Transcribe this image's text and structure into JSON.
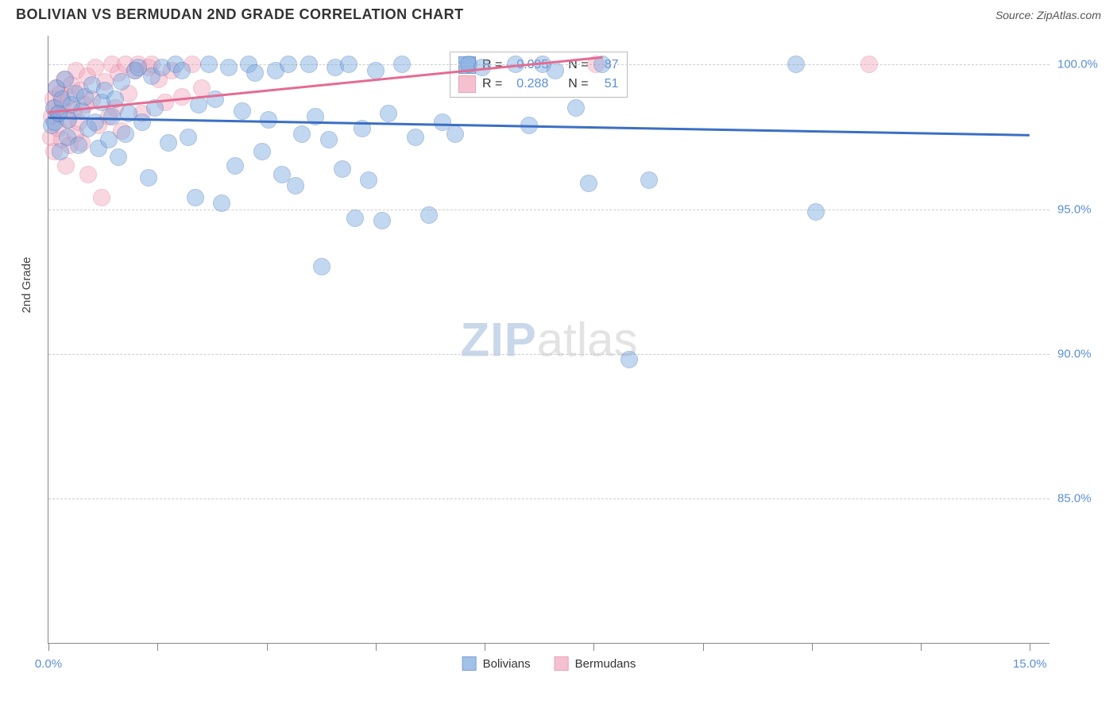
{
  "header": {
    "title": "BOLIVIAN VS BERMUDAN 2ND GRADE CORRELATION CHART",
    "source_prefix": "Source: ",
    "source_name": "ZipAtlas.com"
  },
  "chart": {
    "type": "scatter",
    "y_axis_title": "2nd Grade",
    "x_min": 0.0,
    "x_max": 15.0,
    "y_min": 80.0,
    "y_max": 101.0,
    "x_ticks": [
      0.0,
      1.634,
      3.268,
      4.902,
      6.536,
      8.17,
      9.804,
      11.438,
      13.072,
      14.706
    ],
    "x_tick_labels": {
      "0": "0.0%",
      "14.706": "15.0%"
    },
    "y_ticks": [
      85.0,
      90.0,
      95.0,
      100.0
    ],
    "y_tick_labels": [
      "85.0%",
      "90.0%",
      "95.0%",
      "100.0%"
    ],
    "grid_color": "#cccccc",
    "axis_color": "#888888",
    "background_color": "#ffffff",
    "point_radius": 10,
    "point_opacity": 0.45,
    "series": {
      "bolivians": {
        "label": "Bolivians",
        "fill_color": "#7aa8e0",
        "stroke_color": "#4a78b8",
        "trend_color": "#3b6fc4",
        "R": "-0.095",
        "N": "87",
        "trend": {
          "x1": 0.0,
          "y1": 98.2,
          "x2": 14.7,
          "y2": 97.6
        },
        "points": [
          [
            0.05,
            97.9
          ],
          [
            0.08,
            98.5
          ],
          [
            0.1,
            98.0
          ],
          [
            0.12,
            99.2
          ],
          [
            0.15,
            98.3
          ],
          [
            0.18,
            97.0
          ],
          [
            0.2,
            98.8
          ],
          [
            0.25,
            99.5
          ],
          [
            0.28,
            97.5
          ],
          [
            0.3,
            98.1
          ],
          [
            0.35,
            98.6
          ],
          [
            0.4,
            99.0
          ],
          [
            0.45,
            97.2
          ],
          [
            0.5,
            98.4
          ],
          [
            0.55,
            98.9
          ],
          [
            0.6,
            97.8
          ],
          [
            0.65,
            99.3
          ],
          [
            0.7,
            98.0
          ],
          [
            0.75,
            97.1
          ],
          [
            0.8,
            98.7
          ],
          [
            0.85,
            99.1
          ],
          [
            0.9,
            97.4
          ],
          [
            0.95,
            98.2
          ],
          [
            1.0,
            98.8
          ],
          [
            1.05,
            96.8
          ],
          [
            1.1,
            99.4
          ],
          [
            1.15,
            97.6
          ],
          [
            1.2,
            98.3
          ],
          [
            1.3,
            99.8
          ],
          [
            1.35,
            99.9
          ],
          [
            1.4,
            98.0
          ],
          [
            1.5,
            96.1
          ],
          [
            1.55,
            99.6
          ],
          [
            1.6,
            98.5
          ],
          [
            1.7,
            99.9
          ],
          [
            1.8,
            97.3
          ],
          [
            1.9,
            100.0
          ],
          [
            2.0,
            99.8
          ],
          [
            2.1,
            97.5
          ],
          [
            2.2,
            95.4
          ],
          [
            2.25,
            98.6
          ],
          [
            2.4,
            100.0
          ],
          [
            2.5,
            98.8
          ],
          [
            2.6,
            95.2
          ],
          [
            2.7,
            99.9
          ],
          [
            2.8,
            96.5
          ],
          [
            2.9,
            98.4
          ],
          [
            3.0,
            100.0
          ],
          [
            3.1,
            99.7
          ],
          [
            3.2,
            97.0
          ],
          [
            3.3,
            98.1
          ],
          [
            3.4,
            99.8
          ],
          [
            3.5,
            96.2
          ],
          [
            3.6,
            100.0
          ],
          [
            3.7,
            95.8
          ],
          [
            3.8,
            97.6
          ],
          [
            3.9,
            100.0
          ],
          [
            4.0,
            98.2
          ],
          [
            4.1,
            93.0
          ],
          [
            4.2,
            97.4
          ],
          [
            4.3,
            99.9
          ],
          [
            4.4,
            96.4
          ],
          [
            4.5,
            100.0
          ],
          [
            4.6,
            94.7
          ],
          [
            4.7,
            97.8
          ],
          [
            4.8,
            96.0
          ],
          [
            4.9,
            99.8
          ],
          [
            5.0,
            94.6
          ],
          [
            5.1,
            98.3
          ],
          [
            5.3,
            100.0
          ],
          [
            5.5,
            97.5
          ],
          [
            5.7,
            94.8
          ],
          [
            5.9,
            98.0
          ],
          [
            6.1,
            97.6
          ],
          [
            6.3,
            100.0
          ],
          [
            6.5,
            99.9
          ],
          [
            7.0,
            100.0
          ],
          [
            7.2,
            97.9
          ],
          [
            7.4,
            100.0
          ],
          [
            7.6,
            99.8
          ],
          [
            7.9,
            98.5
          ],
          [
            8.1,
            95.9
          ],
          [
            8.3,
            100.0
          ],
          [
            8.7,
            89.8
          ],
          [
            9.0,
            96.0
          ],
          [
            11.2,
            100.0
          ],
          [
            11.5,
            94.9
          ]
        ]
      },
      "bermudans": {
        "label": "Bermudans",
        "fill_color": "#f2a8bd",
        "stroke_color": "#e07a9a",
        "trend_color": "#e56b92",
        "R": "0.288",
        "N": "51",
        "trend": {
          "x1": 0.0,
          "y1": 98.4,
          "x2": 8.3,
          "y2": 100.3
        },
        "points": [
          [
            0.03,
            97.5
          ],
          [
            0.05,
            98.2
          ],
          [
            0.07,
            98.8
          ],
          [
            0.08,
            97.0
          ],
          [
            0.1,
            98.5
          ],
          [
            0.12,
            99.2
          ],
          [
            0.14,
            97.8
          ],
          [
            0.16,
            98.3
          ],
          [
            0.18,
            99.0
          ],
          [
            0.2,
            97.4
          ],
          [
            0.22,
            98.7
          ],
          [
            0.24,
            99.5
          ],
          [
            0.26,
            96.5
          ],
          [
            0.28,
            98.1
          ],
          [
            0.3,
            98.9
          ],
          [
            0.32,
            97.2
          ],
          [
            0.35,
            99.3
          ],
          [
            0.38,
            98.4
          ],
          [
            0.4,
            97.6
          ],
          [
            0.42,
            99.8
          ],
          [
            0.45,
            98.0
          ],
          [
            0.48,
            99.1
          ],
          [
            0.5,
            97.3
          ],
          [
            0.55,
            98.6
          ],
          [
            0.58,
            99.6
          ],
          [
            0.6,
            96.2
          ],
          [
            0.65,
            98.8
          ],
          [
            0.7,
            99.9
          ],
          [
            0.75,
            97.9
          ],
          [
            0.8,
            95.4
          ],
          [
            0.85,
            99.4
          ],
          [
            0.9,
            98.2
          ],
          [
            0.95,
            100.0
          ],
          [
            1.0,
            98.5
          ],
          [
            1.05,
            99.7
          ],
          [
            1.1,
            97.7
          ],
          [
            1.15,
            100.0
          ],
          [
            1.2,
            99.0
          ],
          [
            1.3,
            99.8
          ],
          [
            1.35,
            100.0
          ],
          [
            1.4,
            98.3
          ],
          [
            1.5,
            99.9
          ],
          [
            1.55,
            100.0
          ],
          [
            1.65,
            99.5
          ],
          [
            1.75,
            98.7
          ],
          [
            1.85,
            99.8
          ],
          [
            2.0,
            98.9
          ],
          [
            2.15,
            100.0
          ],
          [
            2.3,
            99.2
          ],
          [
            8.2,
            100.0
          ],
          [
            12.3,
            100.0
          ]
        ]
      }
    }
  },
  "stats_legend": {
    "rows": [
      {
        "series": "bolivians",
        "r_label": "R =",
        "n_label": "N ="
      },
      {
        "series": "bermudans",
        "r_label": "R =",
        "n_label": "N ="
      }
    ]
  },
  "bottom_legend": [
    "bolivians",
    "bermudans"
  ],
  "watermark": {
    "part1": "ZIP",
    "part2": "atlas"
  }
}
